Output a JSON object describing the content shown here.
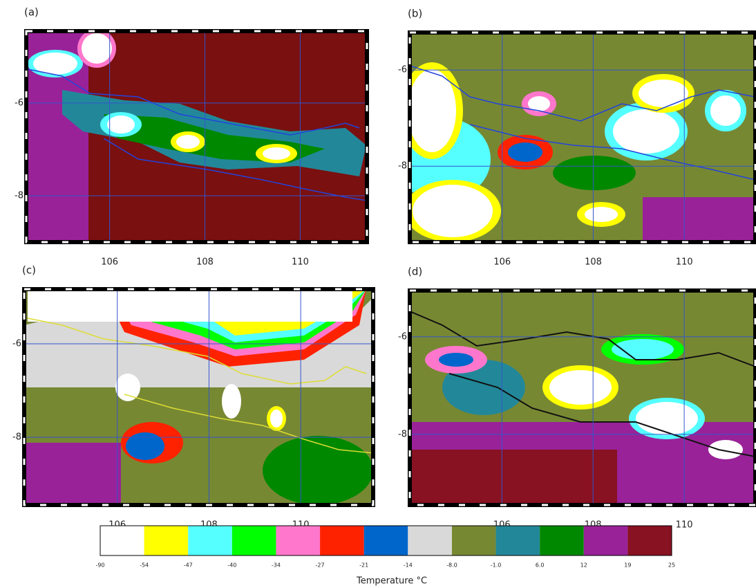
{
  "panels": [
    {
      "label": "(a)",
      "xlim": [
        104.25,
        111.4
      ],
      "ylim": [
        -9.0,
        -4.45
      ],
      "xticks": [
        106,
        108,
        110
      ],
      "yticks": [
        -6,
        -8
      ]
    },
    {
      "label": "(b)",
      "xlim": [
        103.97,
        111.56
      ],
      "ylim": [
        -9.58,
        -5.22
      ],
      "xticks": [
        106,
        108,
        110
      ],
      "yticks": [
        -6,
        -8
      ]
    },
    {
      "label": "(c)",
      "xlim": [
        103.97,
        111.58
      ],
      "ylim": [
        -9.45,
        -4.83
      ],
      "xticks": [
        106,
        108,
        110
      ],
      "yticks": [
        -6,
        -8
      ]
    },
    {
      "label": "(d)",
      "xlim": [
        103.98,
        111.56
      ],
      "ylim": [
        -9.45,
        -5.05
      ],
      "xticks": [
        106,
        108,
        110
      ],
      "yticks": [
        -6,
        -8
      ]
    }
  ],
  "colorbar": {
    "title": "Temperature °C",
    "colors": [
      "#ffffff",
      "#ffff00",
      "#55ffff",
      "#00ff00",
      "#ff77cc",
      "#ff2200",
      "#0066cc",
      "#d9d9d9",
      "#778833",
      "#228899",
      "#008800",
      "#992299",
      "#881122"
    ],
    "ticks": [
      -90,
      -54,
      -47,
      -40,
      -34,
      -27,
      -21,
      -14,
      {
        "value": -8,
        "label": "-8.0"
      },
      {
        "value": -1,
        "label": "-1.0"
      },
      {
        "value": 6,
        "label": "6.0"
      },
      12,
      19,
      25
    ]
  }
}
